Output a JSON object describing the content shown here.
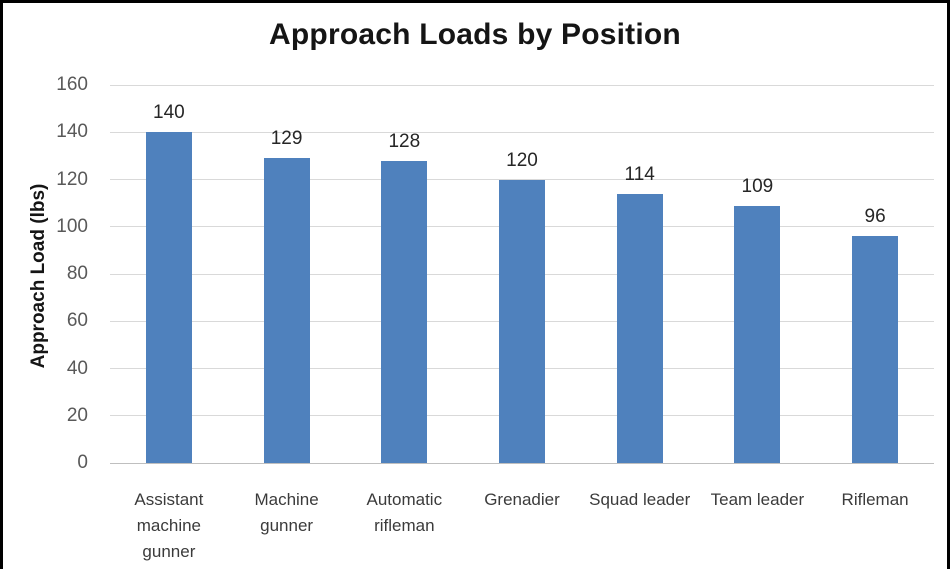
{
  "chart_data": {
    "type": "bar",
    "title": "Approach Loads by Position",
    "xlabel": "",
    "ylabel": "Approach Load (lbs)",
    "categories": [
      "Assistant machine gunner",
      "Machine gunner",
      "Automatic rifleman",
      "Grenadier",
      "Squad leader",
      "Team leader",
      "Rifleman"
    ],
    "values": [
      140,
      129,
      128,
      120,
      114,
      109,
      96
    ],
    "ylim": [
      0,
      160
    ],
    "yticks": [
      0,
      20,
      40,
      60,
      80,
      100,
      120,
      140,
      160
    ],
    "grid": true,
    "legend": false,
    "data_labels_shown": true,
    "colors": {
      "bar": "#4F81BD",
      "gridline": "#D9D9D9",
      "axis_line": "#BFBFBF",
      "tick_label": "#595959",
      "data_label": "#262626",
      "category_label": "#3b3b3b",
      "title": "#151515",
      "frame_border": "#000000",
      "background": "#ffffff"
    }
  }
}
